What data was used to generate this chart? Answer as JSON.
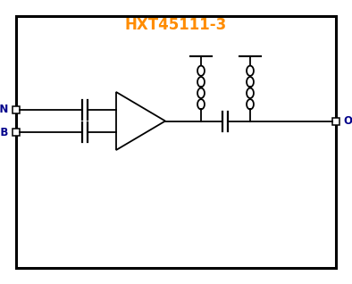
{
  "title": "HXT45111-3",
  "title_color": "#FF8C00",
  "border_color": "#000000",
  "line_color": "#000000",
  "in_label": "IN",
  "inb_label": "INB",
  "out_label": "OUT",
  "label_color": "#00008B",
  "bg_color": "#FFFFFF",
  "figsize": [
    3.94,
    3.18
  ],
  "dpi": 100
}
